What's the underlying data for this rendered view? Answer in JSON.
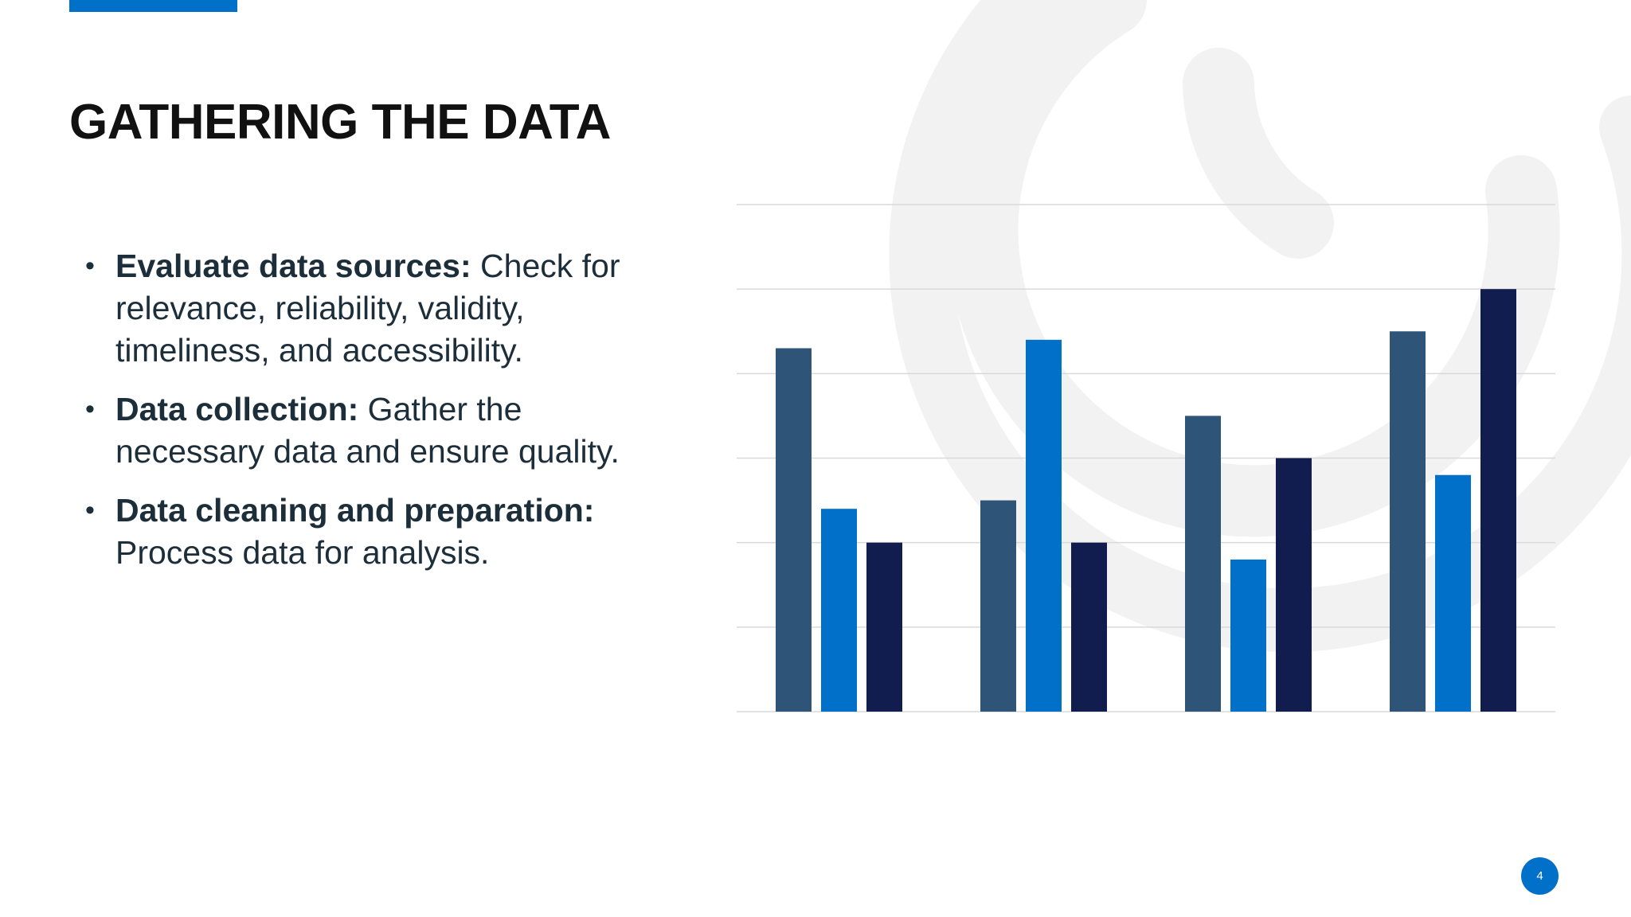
{
  "slide": {
    "title": "GATHERING THE DATA",
    "bullets": [
      {
        "lead": "Evaluate data sources:",
        "text": " Check for relevance, reliability, validity, timeliness, and accessibility."
      },
      {
        "lead": "Data collection:",
        "text": " Gather the necessary data and ensure quality."
      },
      {
        "lead": "Data cleaning and preparation:",
        "text": " Process data for analysis."
      }
    ],
    "page_number": "4",
    "accent_color": "#0070c8",
    "icons": {
      "background_logo": "circular-swirl-logo-icon",
      "bullet": "bullet-dot-icon"
    }
  },
  "chart_data": {
    "type": "bar",
    "categories": [
      "",
      "",
      "",
      ""
    ],
    "series": [
      {
        "color": "#2e5477",
        "values": [
          4.3,
          2.5,
          3.5,
          4.5
        ]
      },
      {
        "color": "#0070c8",
        "values": [
          2.4,
          4.4,
          1.8,
          2.8
        ]
      },
      {
        "color": "#111d4e",
        "values": [
          2.0,
          2.0,
          3.0,
          5.0
        ]
      }
    ],
    "ylim": [
      0,
      6
    ],
    "grid": true,
    "legend": "none",
    "title": "",
    "xlabel": "",
    "ylabel": ""
  }
}
